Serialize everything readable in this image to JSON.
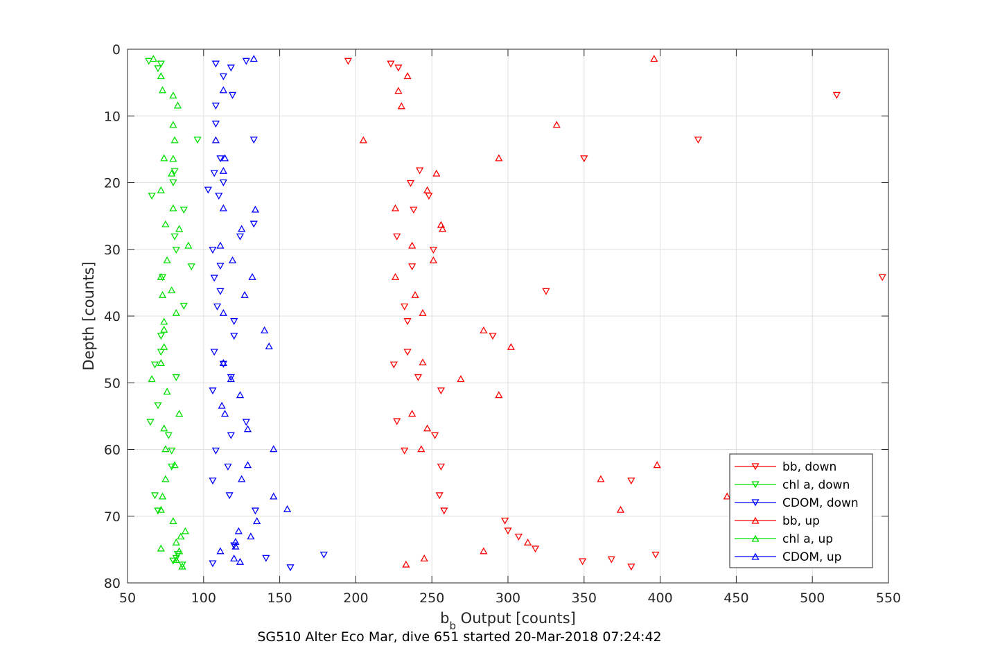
{
  "chart_data": {
    "type": "scatter",
    "title": "SG510 Alter Eco Mar, dive 651 started 20-Mar-2018 07:24:42",
    "xlabel": {
      "main": "b",
      "sub": "b",
      "rest": " Output [counts]"
    },
    "ylabel": "Depth [counts]",
    "xlim": [
      50,
      550
    ],
    "ylim": [
      0,
      80
    ],
    "y_reversed": true,
    "grid": true,
    "legend_position": "bottom-right",
    "xticks": [
      "50",
      "100",
      "150",
      "200",
      "250",
      "300",
      "350",
      "400",
      "450",
      "500",
      "550"
    ],
    "yticks": [
      "0",
      "10",
      "20",
      "30",
      "40",
      "50",
      "60",
      "70",
      "80"
    ],
    "series": [
      {
        "name": "bb, down",
        "color": "#ff0000",
        "marker": "triangle-down",
        "points": [
          [
            195,
            1.8
          ],
          [
            223,
            2.2
          ],
          [
            228,
            2.8
          ],
          [
            516,
            6.9
          ],
          [
            425,
            13.6
          ],
          [
            350,
            16.4
          ],
          [
            242,
            18.2
          ],
          [
            236,
            20.1
          ],
          [
            248,
            22.0
          ],
          [
            238,
            24.1
          ],
          [
            227,
            28.1
          ],
          [
            251,
            30.1
          ],
          [
            237,
            32.6
          ],
          [
            546,
            34.2
          ],
          [
            325,
            36.3
          ],
          [
            232,
            38.6
          ],
          [
            234,
            40.8
          ],
          [
            290,
            43.0
          ],
          [
            234,
            45.4
          ],
          [
            225,
            47.3
          ],
          [
            241,
            49.2
          ],
          [
            256,
            51.2
          ],
          [
            227,
            55.8
          ],
          [
            252,
            57.9
          ],
          [
            232,
            60.2
          ],
          [
            256,
            62.6
          ],
          [
            381,
            64.7
          ],
          [
            255,
            66.9
          ],
          [
            258,
            69.2
          ],
          [
            298,
            70.7
          ],
          [
            300,
            72.2
          ],
          [
            307,
            73.1
          ],
          [
            318,
            74.9
          ],
          [
            397,
            75.8
          ],
          [
            368,
            76.5
          ],
          [
            349,
            76.8
          ],
          [
            381,
            77.6
          ]
        ]
      },
      {
        "name": "chl a, down",
        "color": "#00e000",
        "marker": "triangle-down",
        "points": [
          [
            64,
            1.8
          ],
          [
            72,
            2.2
          ],
          [
            70,
            2.9
          ],
          [
            96,
            13.6
          ],
          [
            81,
            18.3
          ],
          [
            80,
            20.0
          ],
          [
            66,
            22.0
          ],
          [
            87,
            24.1
          ],
          [
            81,
            28.1
          ],
          [
            82,
            30.1
          ],
          [
            92,
            32.6
          ],
          [
            73,
            34.2
          ],
          [
            87,
            38.5
          ],
          [
            72,
            43.0
          ],
          [
            72,
            45.4
          ],
          [
            68,
            47.3
          ],
          [
            82,
            49.2
          ],
          [
            70,
            53.4
          ],
          [
            65,
            55.9
          ],
          [
            77,
            57.9
          ],
          [
            79,
            60.2
          ],
          [
            79,
            62.6
          ],
          [
            68,
            66.9
          ],
          [
            70,
            69.2
          ],
          [
            83,
            75.7
          ],
          [
            82,
            76.3
          ],
          [
            80,
            76.7
          ],
          [
            86,
            77.3
          ]
        ]
      },
      {
        "name": "CDOM, down",
        "color": "#0000ff",
        "marker": "triangle-down",
        "points": [
          [
            128,
            1.8
          ],
          [
            108,
            2.2
          ],
          [
            118,
            2.8
          ],
          [
            113,
            4.1
          ],
          [
            119,
            6.9
          ],
          [
            108,
            8.5
          ],
          [
            108,
            11.2
          ],
          [
            133,
            13.6
          ],
          [
            111,
            16.4
          ],
          [
            107,
            18.6
          ],
          [
            113,
            20.0
          ],
          [
            103,
            21.1
          ],
          [
            110,
            22.0
          ],
          [
            133,
            26.2
          ],
          [
            124,
            28.1
          ],
          [
            106,
            30.1
          ],
          [
            111,
            32.5
          ],
          [
            107,
            34.3
          ],
          [
            111,
            36.3
          ],
          [
            109,
            38.6
          ],
          [
            120,
            40.8
          ],
          [
            120,
            43.0
          ],
          [
            107,
            45.4
          ],
          [
            113,
            47.2
          ],
          [
            118,
            49.2
          ],
          [
            106,
            51.2
          ],
          [
            128,
            55.9
          ],
          [
            118,
            57.9
          ],
          [
            108,
            60.2
          ],
          [
            116,
            62.6
          ],
          [
            106,
            64.7
          ],
          [
            117,
            66.9
          ],
          [
            134,
            69.2
          ],
          [
            120,
            74.4
          ],
          [
            179,
            75.8
          ],
          [
            141,
            76.3
          ],
          [
            106,
            77.1
          ],
          [
            157,
            77.7
          ]
        ]
      },
      {
        "name": "bb, up",
        "color": "#ff0000",
        "marker": "triangle-up",
        "points": [
          [
            396,
            1.4
          ],
          [
            234,
            4.0
          ],
          [
            228,
            6.2
          ],
          [
            230,
            8.5
          ],
          [
            332,
            11.3
          ],
          [
            205,
            13.6
          ],
          [
            294,
            16.3
          ],
          [
            253,
            18.6
          ],
          [
            247,
            21.1
          ],
          [
            226,
            23.8
          ],
          [
            256,
            26.3
          ],
          [
            257,
            26.9
          ],
          [
            237,
            29.4
          ],
          [
            251,
            31.6
          ],
          [
            226,
            34.1
          ],
          [
            239,
            36.8
          ],
          [
            244,
            39.5
          ],
          [
            284,
            42.1
          ],
          [
            302,
            44.6
          ],
          [
            244,
            46.9
          ],
          [
            269,
            49.4
          ],
          [
            294,
            51.8
          ],
          [
            237,
            54.6
          ],
          [
            247,
            56.8
          ],
          [
            243,
            59.9
          ],
          [
            398,
            62.3
          ],
          [
            361,
            64.4
          ],
          [
            444,
            67.0
          ],
          [
            374,
            69.0
          ],
          [
            313,
            73.9
          ],
          [
            284,
            75.2
          ],
          [
            245,
            76.3
          ],
          [
            233,
            77.2
          ]
        ]
      },
      {
        "name": "chl a, up",
        "color": "#00e000",
        "marker": "triangle-up",
        "points": [
          [
            67,
            1.4
          ],
          [
            72,
            4.0
          ],
          [
            73,
            6.1
          ],
          [
            80,
            6.9
          ],
          [
            83,
            8.4
          ],
          [
            80,
            11.3
          ],
          [
            81,
            13.6
          ],
          [
            74,
            16.3
          ],
          [
            80,
            16.4
          ],
          [
            79,
            18.6
          ],
          [
            72,
            21.1
          ],
          [
            80,
            23.8
          ],
          [
            75,
            26.2
          ],
          [
            84,
            26.9
          ],
          [
            90,
            29.4
          ],
          [
            76,
            31.6
          ],
          [
            72,
            34.1
          ],
          [
            79,
            36.1
          ],
          [
            73,
            36.8
          ],
          [
            82,
            39.5
          ],
          [
            74,
            40.8
          ],
          [
            74,
            42.0
          ],
          [
            74,
            44.6
          ],
          [
            72,
            47.0
          ],
          [
            66,
            49.4
          ],
          [
            76,
            51.3
          ],
          [
            84,
            54.6
          ],
          [
            74,
            56.8
          ],
          [
            75,
            59.9
          ],
          [
            81,
            62.3
          ],
          [
            75,
            64.4
          ],
          [
            73,
            67.0
          ],
          [
            72,
            69.0
          ],
          [
            80,
            70.7
          ],
          [
            88,
            72.2
          ],
          [
            85,
            73.0
          ],
          [
            82,
            73.9
          ],
          [
            72,
            74.8
          ],
          [
            84,
            75.2
          ],
          [
            82,
            76.5
          ],
          [
            86,
            77.5
          ]
        ]
      },
      {
        "name": "CDOM, up",
        "color": "#0000ff",
        "marker": "triangle-up",
        "points": [
          [
            133,
            1.4
          ],
          [
            113,
            6.1
          ],
          [
            108,
            13.6
          ],
          [
            114,
            16.3
          ],
          [
            113,
            18.2
          ],
          [
            134,
            24.0
          ],
          [
            113,
            23.8
          ],
          [
            125,
            26.9
          ],
          [
            111,
            29.4
          ],
          [
            119,
            31.6
          ],
          [
            132,
            34.1
          ],
          [
            127,
            36.8
          ],
          [
            113,
            39.5
          ],
          [
            140,
            42.1
          ],
          [
            143,
            44.5
          ],
          [
            113,
            47.0
          ],
          [
            118,
            49.4
          ],
          [
            124,
            51.8
          ],
          [
            112,
            53.4
          ],
          [
            114,
            54.6
          ],
          [
            129,
            56.9
          ],
          [
            146,
            59.9
          ],
          [
            129,
            62.3
          ],
          [
            125,
            64.4
          ],
          [
            146,
            67.0
          ],
          [
            155,
            68.9
          ],
          [
            135,
            70.7
          ],
          [
            123,
            72.2
          ],
          [
            131,
            73.0
          ],
          [
            121,
            73.8
          ],
          [
            121,
            74.5
          ],
          [
            111,
            75.2
          ],
          [
            120,
            76.3
          ],
          [
            124,
            76.8
          ]
        ]
      }
    ]
  }
}
